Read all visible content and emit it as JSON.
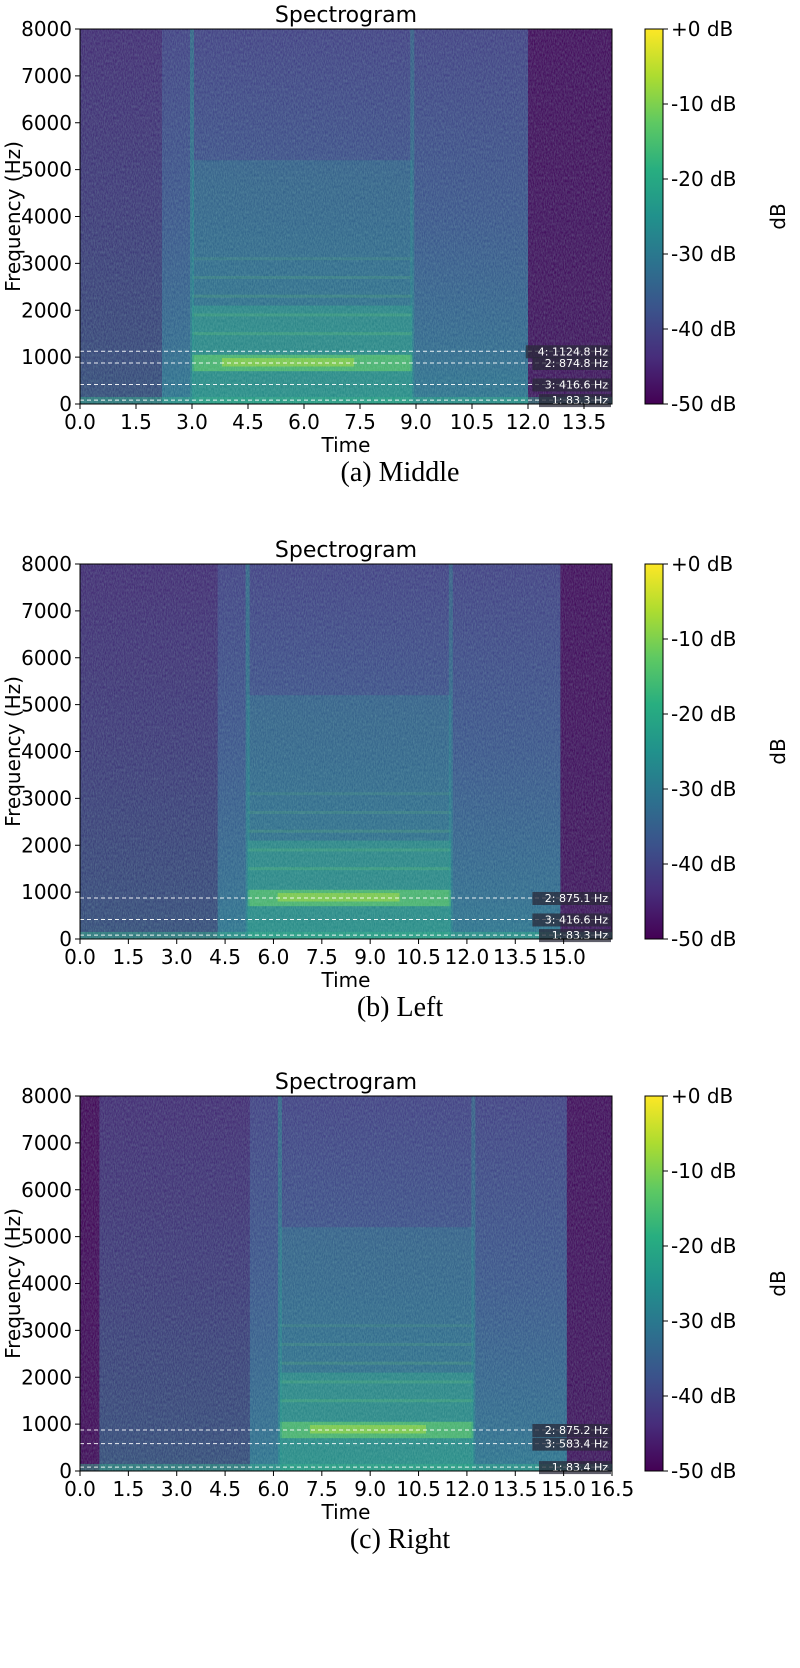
{
  "chart_data": [
    {
      "type": "heatmap",
      "title": "Spectrogram",
      "xlabel": "Time",
      "ylabel": "Frequency (Hz)",
      "xlim": [
        0,
        14.25
      ],
      "ylim": [
        0,
        8000
      ],
      "x_ticks": [
        "0.0",
        "1.5",
        "3.0",
        "4.5",
        "6.0",
        "7.5",
        "9.0",
        "10.5",
        "12.0",
        "13.5"
      ],
      "y_ticks": [
        "0",
        "1000",
        "2000",
        "3000",
        "4000",
        "5000",
        "6000",
        "7000",
        "8000"
      ],
      "colorbar": {
        "label": "dB",
        "ticks": [
          "+0 dB",
          "-10 dB",
          "-20 dB",
          "-30 dB",
          "-40 dB",
          "-50 dB"
        ],
        "range": [
          -50,
          0
        ]
      },
      "signal_time_range": [
        3.0,
        8.9
      ],
      "silence_after": 12.0,
      "markers": [
        {
          "freq": 1124.8,
          "label": "4: 1124.8 Hz"
        },
        {
          "freq": 874.8,
          "label": "2: 874.8 Hz"
        },
        {
          "freq": 416.6,
          "label": "3: 416.6 Hz"
        },
        {
          "freq": 83.3,
          "label": "1: 83.3 Hz"
        }
      ],
      "caption": "(a)  Middle"
    },
    {
      "type": "heatmap",
      "title": "Spectrogram",
      "xlabel": "Time",
      "ylabel": "Frequency (Hz)",
      "xlim": [
        0,
        16.5
      ],
      "ylim": [
        0,
        8000
      ],
      "x_ticks": [
        "0.0",
        "1.5",
        "3.0",
        "4.5",
        "6.0",
        "7.5",
        "9.0",
        "10.5",
        "12.0",
        "13.5",
        "15.0"
      ],
      "y_ticks": [
        "0",
        "1000",
        "2000",
        "3000",
        "4000",
        "5000",
        "6000",
        "7000",
        "8000"
      ],
      "colorbar": {
        "label": "dB",
        "ticks": [
          "+0 dB",
          "-10 dB",
          "-20 dB",
          "-30 dB",
          "-40 dB",
          "-50 dB"
        ],
        "range": [
          -50,
          0
        ]
      },
      "signal_time_range": [
        5.2,
        11.5
      ],
      "silence_after": 14.9,
      "markers": [
        {
          "freq": 875.1,
          "label": "2: 875.1 Hz"
        },
        {
          "freq": 416.6,
          "label": "3: 416.6 Hz"
        },
        {
          "freq": 83.3,
          "label": "1: 83.3 Hz"
        }
      ],
      "caption": "(b)  Left"
    },
    {
      "type": "heatmap",
      "title": "Spectrogram",
      "xlabel": "Time",
      "ylabel": "Frequency (Hz)",
      "xlim": [
        0,
        16.5
      ],
      "ylim": [
        0,
        8000
      ],
      "x_ticks": [
        "0.0",
        "1.5",
        "3.0",
        "4.5",
        "6.0",
        "7.5",
        "9.0",
        "10.5",
        "12.0",
        "13.5",
        "15.0",
        "16.5"
      ],
      "y_ticks": [
        "0",
        "1000",
        "2000",
        "3000",
        "4000",
        "5000",
        "6000",
        "7000",
        "8000"
      ],
      "colorbar": {
        "label": "dB",
        "ticks": [
          "+0 dB",
          "-10 dB",
          "-20 dB",
          "-30 dB",
          "-40 dB",
          "-50 dB"
        ],
        "range": [
          -50,
          0
        ]
      },
      "signal_time_range": [
        6.2,
        12.2
      ],
      "silence_before": 0.6,
      "silence_after": 15.1,
      "markers": [
        {
          "freq": 875.2,
          "label": "2: 875.2 Hz"
        },
        {
          "freq": 583.4,
          "label": "3: 583.4 Hz"
        },
        {
          "freq": 83.4,
          "label": "1: 83.4 Hz"
        }
      ],
      "caption": "(c)  Right"
    }
  ]
}
